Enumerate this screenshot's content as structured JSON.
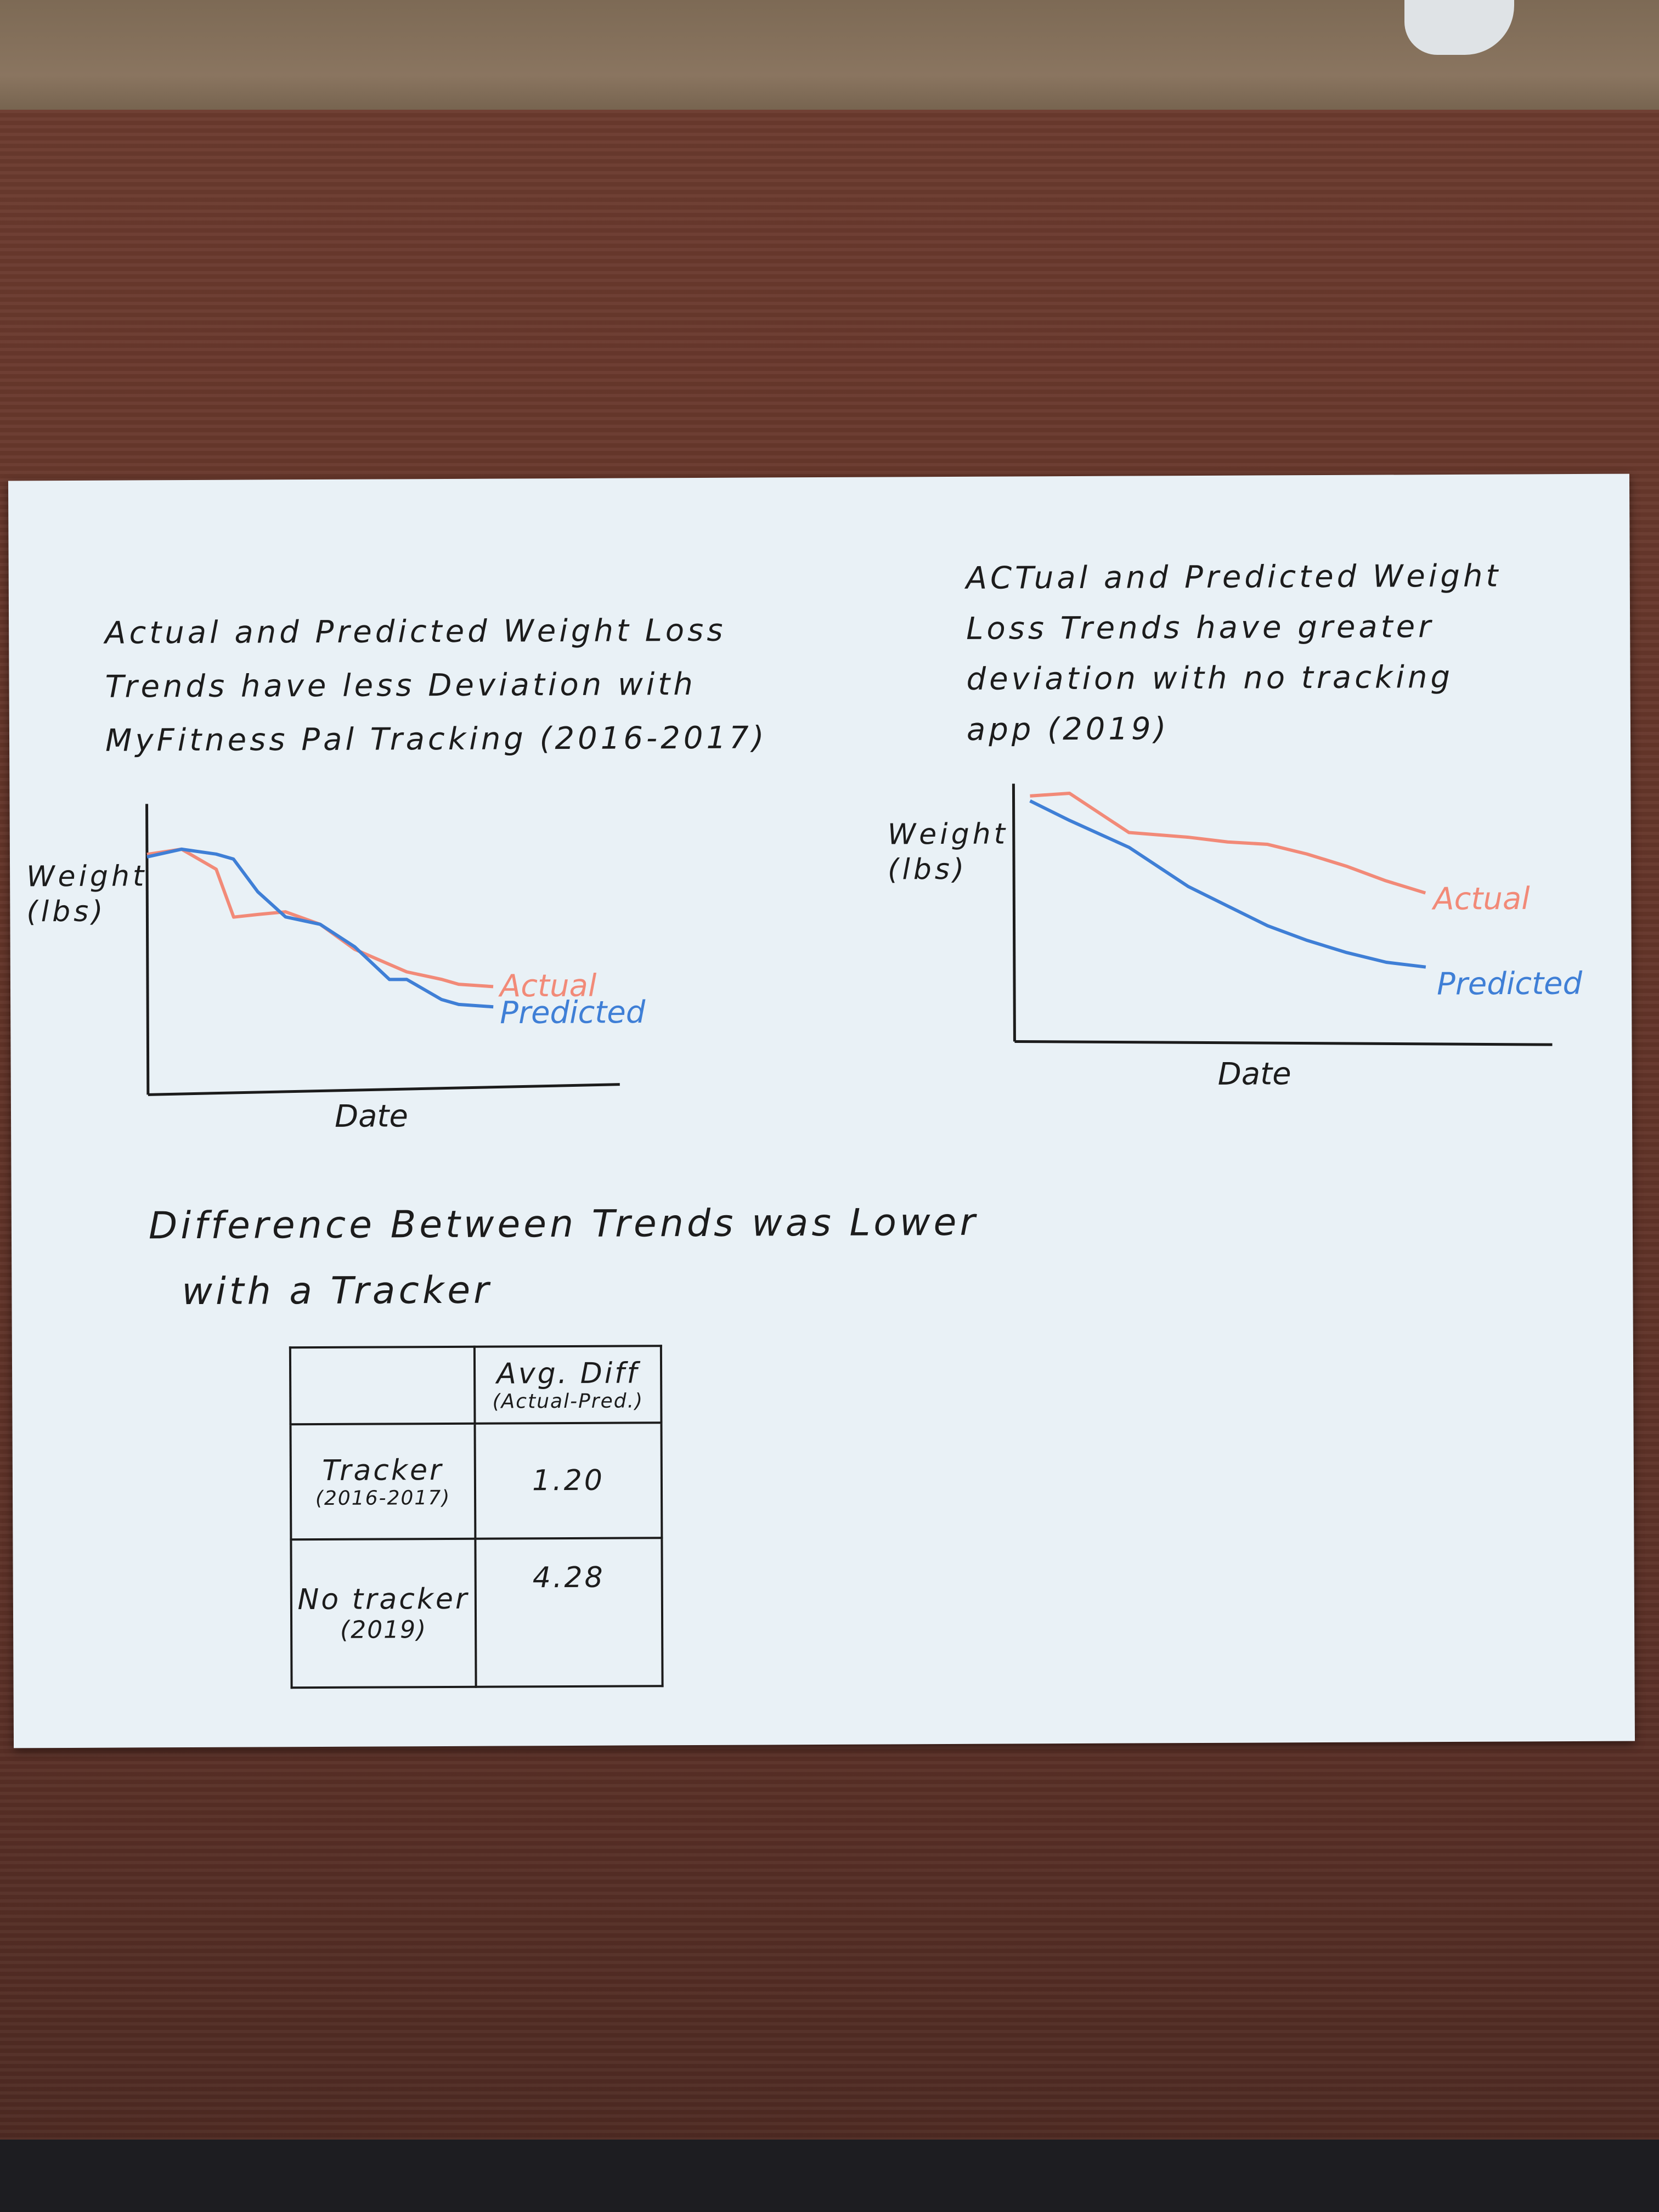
{
  "chart_data": [
    {
      "type": "line",
      "title": [
        "Actual and Predicted Weight Loss",
        "Trends have less Deviation with",
        "MyFitness Pal Tracking (2016-2017)"
      ],
      "xlabel": "Date",
      "ylabel": [
        "Weight",
        "(lbs)"
      ],
      "x": [
        0,
        0.1,
        0.2,
        0.25,
        0.32,
        0.4,
        0.5,
        0.6,
        0.7,
        0.75,
        0.85,
        0.9,
        1.0
      ],
      "series": [
        {
          "name": "Actual",
          "color": "#f28a78",
          "values": [
            0.8,
            0.82,
            0.74,
            0.55,
            0.56,
            0.57,
            0.52,
            0.42,
            0.36,
            0.33,
            0.3,
            0.28,
            0.27
          ]
        },
        {
          "name": "Predicted",
          "color": "#3f7fd6",
          "values": [
            0.79,
            0.82,
            0.8,
            0.78,
            0.65,
            0.55,
            0.52,
            0.43,
            0.3,
            0.3,
            0.22,
            0.2,
            0.19
          ]
        }
      ],
      "ylim": [
        0,
        1
      ],
      "grid": false
    },
    {
      "type": "line",
      "title": [
        "ACTual and Predicted Weight",
        "Loss Trends have greater",
        "deviation with no tracking",
        "app (2019)"
      ],
      "xlabel": "Date",
      "ylabel": [
        "Weight",
        "(lbs)"
      ],
      "x": [
        0,
        0.1,
        0.25,
        0.4,
        0.5,
        0.6,
        0.7,
        0.8,
        0.9,
        1.0
      ],
      "series": [
        {
          "name": "Actual",
          "color": "#f28a78",
          "values": [
            0.95,
            0.96,
            0.8,
            0.78,
            0.76,
            0.75,
            0.71,
            0.66,
            0.6,
            0.55
          ]
        },
        {
          "name": "Predicted",
          "color": "#3f7fd6",
          "values": [
            0.93,
            0.85,
            0.74,
            0.58,
            0.5,
            0.42,
            0.36,
            0.31,
            0.27,
            0.25
          ]
        }
      ],
      "ylim": [
        0,
        1
      ],
      "grid": false
    },
    {
      "type": "table",
      "title": [
        "Difference Between Trends was Lower",
        "with a Tracker"
      ],
      "columns": [
        "",
        "Avg. Diff (Actual-Pred.)"
      ],
      "header": {
        "main": "Avg. Diff",
        "sub": "(Actual-Pred.)"
      },
      "rows": [
        {
          "label": "Tracker",
          "sub": "(2016-2017)",
          "value": "1.20"
        },
        {
          "label": "No tracker",
          "sub": "(2019)",
          "value": "4.28"
        }
      ]
    }
  ]
}
